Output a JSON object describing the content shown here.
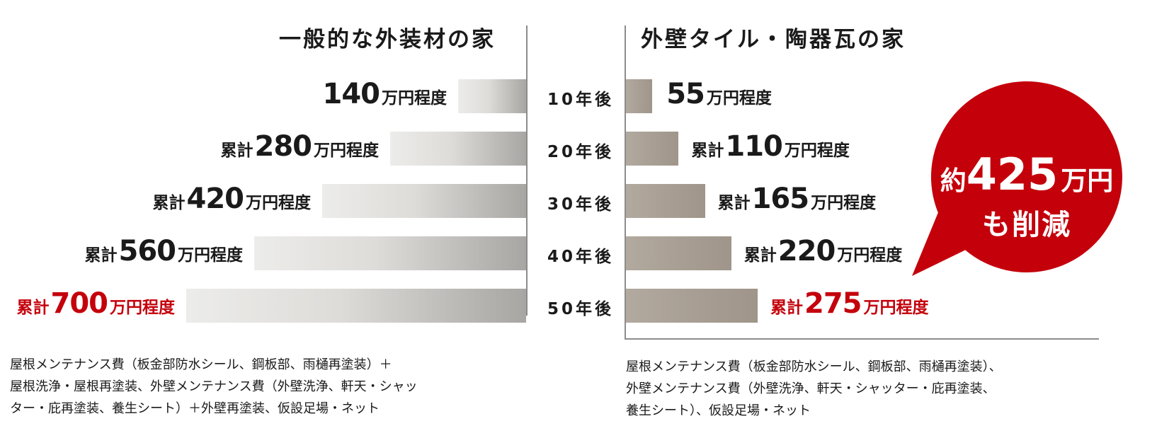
{
  "left_title": "一般的な外装材の家",
  "right_title": "外壁タイル・陶器瓦の家",
  "years": [
    "10年後",
    "20年後",
    "30年後",
    "40年後",
    "50年後"
  ],
  "chart_data": [
    {
      "type": "bar",
      "orientation": "horizontal",
      "direction": "right-to-left",
      "title": "一般的な外装材の家",
      "categories": [
        "10年後",
        "20年後",
        "30年後",
        "40年後",
        "50年後"
      ],
      "values": [
        140,
        280,
        420,
        560,
        700
      ],
      "unit": "万円",
      "labels": [
        {
          "prefix": "",
          "value": "140",
          "suffix": "万円程度"
        },
        {
          "prefix": "累計",
          "value": "280",
          "suffix": "万円程度"
        },
        {
          "prefix": "累計",
          "value": "420",
          "suffix": "万円程度"
        },
        {
          "prefix": "累計",
          "value": "560",
          "suffix": "万円程度"
        },
        {
          "prefix": "累計",
          "value": "700",
          "suffix": "万円程度"
        }
      ],
      "highlight_color": "#c4000b"
    },
    {
      "type": "bar",
      "orientation": "horizontal",
      "direction": "left-to-right",
      "title": "外壁タイル・陶器瓦の家",
      "categories": [
        "10年後",
        "20年後",
        "30年後",
        "40年後",
        "50年後"
      ],
      "values": [
        55,
        110,
        165,
        220,
        275
      ],
      "unit": "万円",
      "labels": [
        {
          "prefix": "",
          "value": "55",
          "suffix": "万円程度"
        },
        {
          "prefix": "累計",
          "value": "110",
          "suffix": "万円程度"
        },
        {
          "prefix": "累計",
          "value": "165",
          "suffix": "万円程度"
        },
        {
          "prefix": "累計",
          "value": "220",
          "suffix": "万円程度"
        },
        {
          "prefix": "累計",
          "value": "275",
          "suffix": "万円程度"
        }
      ],
      "highlight_color": "#c4000b"
    }
  ],
  "bubble": {
    "prefix": "約",
    "number": "425",
    "unit": "万円",
    "line2": "も削減",
    "color": "#c4000b"
  },
  "notes": {
    "left": [
      "屋根メンテナンス費（板金部防水シール、鋼板部、雨樋再塗装）＋",
      "屋根洗浄・屋根再塗装、外壁メンテナンス費（外壁洗浄、軒天・シャッ",
      "ター・庇再塗装、養生シート）＋外壁再塗装、仮設足場・ネット"
    ],
    "right": [
      "屋根メンテナンス費（板金部防水シール、鋼板部、雨樋再塗装）、",
      "外壁メンテナンス費（外壁洗浄、軒天・シャッター・庇再塗装、",
      "養生シート）、仮設足場・ネット"
    ]
  }
}
